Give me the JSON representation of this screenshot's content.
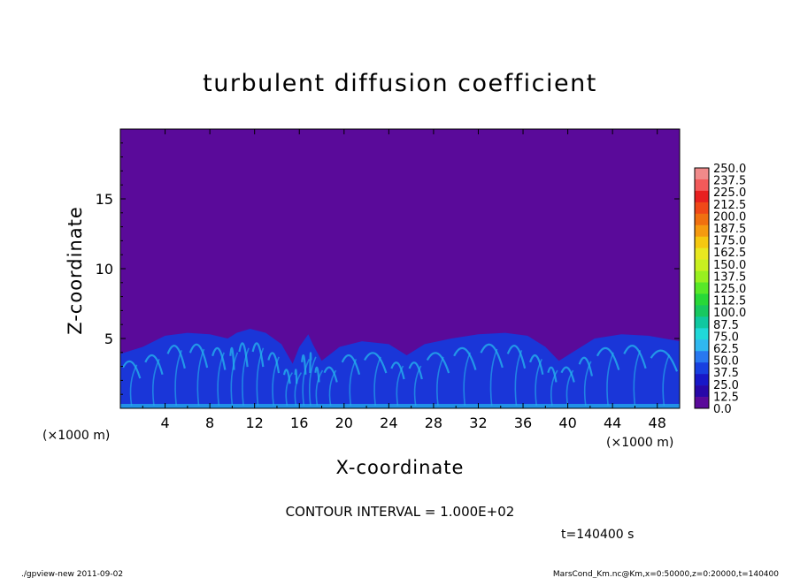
{
  "chart_data": {
    "type": "heatmap",
    "title": "turbulent diffusion coefficient",
    "xlabel": "X-coordinate",
    "ylabel": "Z-coordinate",
    "x_unit": "(×1000 m)",
    "y_unit": "(×1000 m)",
    "xlim": [
      0,
      50
    ],
    "ylim": [
      0,
      20
    ],
    "x_ticks": [
      "4",
      "8",
      "12",
      "16",
      "20",
      "24",
      "28",
      "32",
      "36",
      "40",
      "44",
      "48"
    ],
    "y_ticks": [
      "5",
      "10",
      "15"
    ],
    "x_tick_values": [
      4,
      8,
      12,
      16,
      20,
      24,
      28,
      32,
      36,
      40,
      44,
      48
    ],
    "y_tick_values": [
      5,
      10,
      15
    ],
    "colorbar": {
      "labels": [
        "250.0",
        "237.5",
        "225.0",
        "212.5",
        "200.0",
        "187.5",
        "175.0",
        "162.5",
        "150.0",
        "137.5",
        "125.0",
        "112.5",
        "100.0",
        "87.5",
        "75.0",
        "62.5",
        "50.0",
        "37.5",
        "25.0",
        "12.5",
        "0.0"
      ],
      "colors": [
        "#f08a8a",
        "#f25a5a",
        "#e82020",
        "#f04818",
        "#f07010",
        "#f59a10",
        "#f5c810",
        "#e8e820",
        "#c8f020",
        "#98f020",
        "#58e828",
        "#28d838",
        "#18c860",
        "#10c8a0",
        "#20d8d8",
        "#30b8f0",
        "#2878f0",
        "#1840e0",
        "#1818c8",
        "#2808a8",
        "#5a0a9a"
      ]
    },
    "boundary_layer_top": [
      [
        0,
        3.9
      ],
      [
        2,
        4.4
      ],
      [
        4,
        5.2
      ],
      [
        6,
        5.4
      ],
      [
        8,
        5.3
      ],
      [
        9.6,
        5.0
      ],
      [
        10.4,
        5.4
      ],
      [
        11.6,
        5.7
      ],
      [
        13,
        5.4
      ],
      [
        14.4,
        4.6
      ],
      [
        15.4,
        3.2
      ],
      [
        16,
        4.4
      ],
      [
        16.8,
        5.3
      ],
      [
        17.2,
        4.6
      ],
      [
        18,
        3.4
      ],
      [
        19.6,
        4.4
      ],
      [
        21.6,
        4.8
      ],
      [
        24,
        4.6
      ],
      [
        25.6,
        3.8
      ],
      [
        27.2,
        4.6
      ],
      [
        29.6,
        5.0
      ],
      [
        32,
        5.3
      ],
      [
        34.4,
        5.4
      ],
      [
        36.4,
        5.2
      ],
      [
        38,
        4.4
      ],
      [
        39.2,
        3.4
      ],
      [
        40.8,
        4.2
      ],
      [
        42.4,
        5.0
      ],
      [
        44.8,
        5.3
      ],
      [
        47.2,
        5.2
      ],
      [
        50,
        4.8
      ]
    ],
    "contour_interval": "CONTOUR INTERVAL = 1.000E+02",
    "time_label": "t=140400  s"
  },
  "footer": {
    "left": "./gpview-new  2011-09-02",
    "right": "MarsCond_Km.nc@Km,x=0:50000,z=0:20000,t=140400"
  },
  "colors": {
    "background_field": "#5a0a9a",
    "layer_base": "#1a36d8",
    "layer_bright": "#25b8ee"
  }
}
